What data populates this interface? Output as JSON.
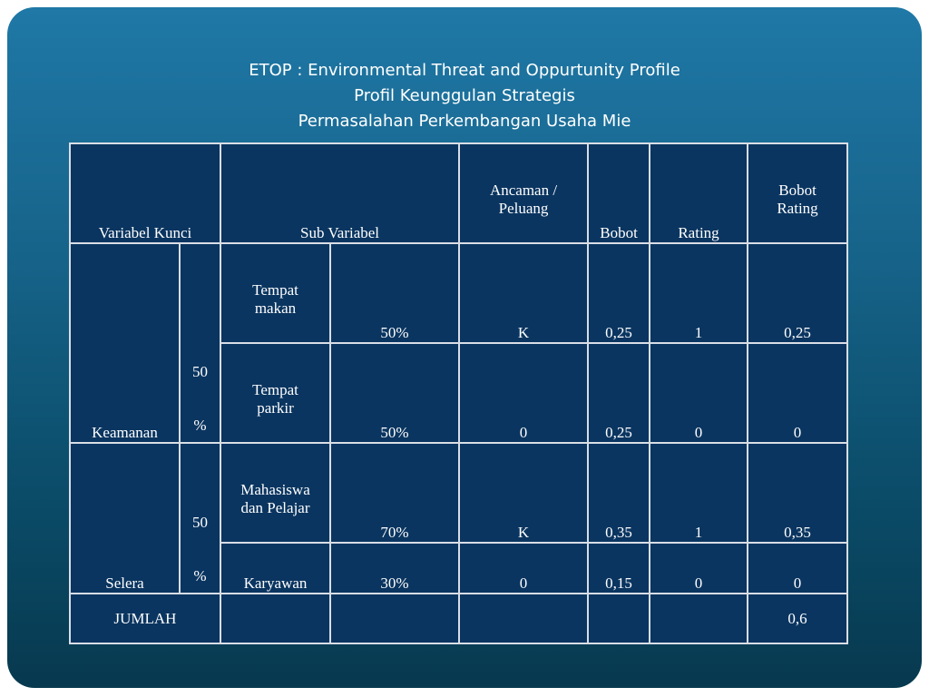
{
  "title": {
    "line1": "ETOP : Environmental Threat and Oppurtunity Profile",
    "line2": "Profil Keunggulan Strategis",
    "line3": "Permasalahan Perkembangan Usaha Mie"
  },
  "table": {
    "headers": {
      "variabel_kunci": "Variabel Kunci",
      "sub_variabel": "Sub Variabel",
      "ancaman_top": "Ancaman /",
      "ancaman_bottom": "Peluang",
      "bobot": "Bobot",
      "rating": "Rating",
      "bobot_rating_top": "Bobot",
      "bobot_rating_bottom": "Rating"
    },
    "groups": [
      {
        "variable": "Keamanan",
        "weight_top": "50",
        "weight_bottom": "%",
        "rows": [
          {
            "sub_top": "Tempat",
            "sub_bottom": "makan",
            "percent": "50%",
            "ancaman": "K",
            "bobot": "0,25",
            "rating": "1",
            "bobot_rating": "0,25"
          },
          {
            "sub_top": "Tempat",
            "sub_bottom": "parkir",
            "percent": "50%",
            "ancaman": "0",
            "bobot": "0,25",
            "rating": "0",
            "bobot_rating": "0"
          }
        ]
      },
      {
        "variable": "Selera",
        "weight_top": "50",
        "weight_bottom": "%",
        "rows": [
          {
            "sub_top": "Mahasiswa",
            "sub_bottom": "dan Pelajar",
            "percent": "70%",
            "ancaman": "K",
            "bobot": "0,35",
            "rating": "1",
            "bobot_rating": "0,35"
          },
          {
            "sub_top": "",
            "sub_bottom": "Karyawan",
            "percent": "30%",
            "ancaman": "0",
            "bobot": "0,15",
            "rating": "0",
            "bobot_rating": "0"
          }
        ]
      }
    ],
    "total": {
      "label": "JUMLAH",
      "bobot_rating": "0,6"
    }
  }
}
